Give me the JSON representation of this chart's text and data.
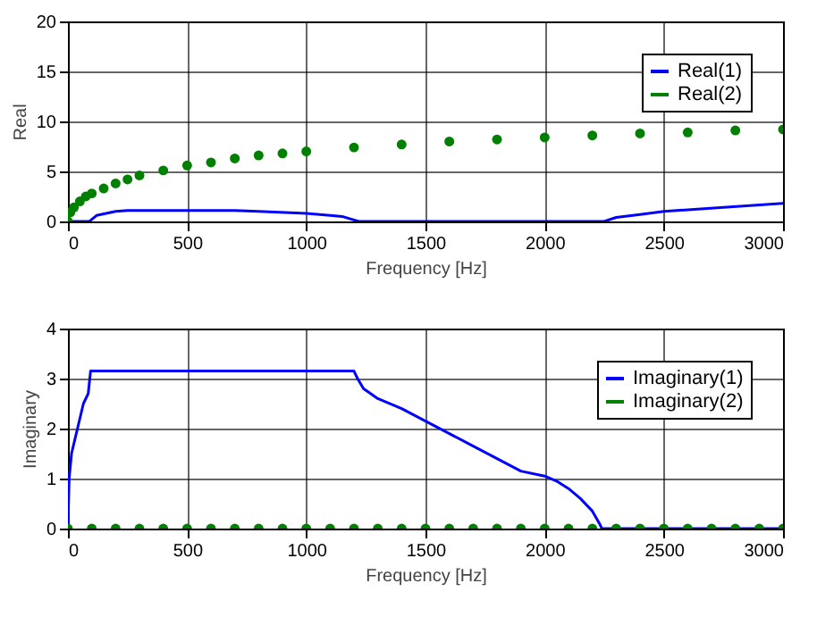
{
  "chart_data": [
    {
      "type": "line",
      "xlabel": "Frequency [Hz]",
      "ylabel": "Real",
      "xlim": [
        0,
        3000
      ],
      "xticks": [
        0,
        500,
        1000,
        1500,
        2000,
        2500,
        3000
      ],
      "ylim": [
        0,
        20
      ],
      "yticks": [
        0,
        5,
        10,
        15,
        20
      ],
      "grid": true,
      "legend": "top right",
      "series": [
        {
          "name": "Real(1)",
          "color": "#0000ff",
          "marker": "none",
          "x": [
            0,
            90,
            120,
            200,
            250,
            500,
            700,
            800,
            1000,
            1100,
            1150,
            1220,
            1500,
            2000,
            2250,
            2300,
            2400,
            2500,
            2750,
            3000
          ],
          "values": [
            0,
            0,
            0.6,
            1.0,
            1.1,
            1.1,
            1.1,
            1.0,
            0.8,
            0.6,
            0.5,
            0,
            0,
            0,
            0,
            0.4,
            0.7,
            1.0,
            1.4,
            1.8
          ]
        },
        {
          "name": "Real(2)",
          "type": "scatter",
          "color": "#008000",
          "marker": "circle",
          "x": [
            0,
            10,
            25,
            50,
            75,
            100,
            150,
            200,
            250,
            300,
            400,
            500,
            600,
            700,
            800,
            900,
            1000,
            1200,
            1400,
            1600,
            1800,
            2000,
            2200,
            2400,
            2600,
            2800,
            3000
          ],
          "values": [
            0,
            0.9,
            1.4,
            2.0,
            2.5,
            2.8,
            3.3,
            3.8,
            4.2,
            4.6,
            5.1,
            5.6,
            5.9,
            6.3,
            6.6,
            6.8,
            7.0,
            7.4,
            7.7,
            8.0,
            8.2,
            8.4,
            8.6,
            8.8,
            8.9,
            9.1,
            9.2
          ]
        }
      ]
    },
    {
      "type": "line",
      "xlabel": "Frequency [Hz]",
      "ylabel": "Imaginary",
      "xlim": [
        0,
        3000
      ],
      "xticks": [
        0,
        500,
        1000,
        1500,
        2000,
        2500,
        3000
      ],
      "ylim": [
        0,
        4
      ],
      "yticks": [
        0,
        1,
        2,
        3,
        4
      ],
      "grid": true,
      "legend": "top right",
      "series": [
        {
          "name": "Imaginary(1)",
          "color": "#0000ff",
          "marker": "none",
          "x": [
            0,
            5,
            15,
            40,
            65,
            85,
            95,
            1200,
            1215,
            1240,
            1300,
            1400,
            1500,
            1600,
            1700,
            1800,
            1900,
            2000,
            2050,
            2100,
            2150,
            2200,
            2230,
            2240,
            3000
          ],
          "values": [
            0,
            1.0,
            1.5,
            2.0,
            2.5,
            2.7,
            3.15,
            3.15,
            3.0,
            2.8,
            2.6,
            2.4,
            2.15,
            1.9,
            1.65,
            1.4,
            1.15,
            1.05,
            0.95,
            0.8,
            0.6,
            0.35,
            0.1,
            0,
            0
          ]
        },
        {
          "name": "Imaginary(2)",
          "type": "scatter",
          "color": "#008000",
          "marker": "circle",
          "x": [
            0,
            100,
            200,
            300,
            400,
            500,
            600,
            700,
            800,
            900,
            1000,
            1100,
            1200,
            1300,
            1400,
            1500,
            1600,
            1700,
            1800,
            1900,
            2000,
            2100,
            2200,
            2300,
            2400,
            2500,
            2600,
            2700,
            2800,
            2900,
            3000
          ],
          "values": [
            0,
            0,
            0,
            0,
            0,
            0,
            0,
            0,
            0,
            0,
            0,
            0,
            0,
            0,
            0,
            0,
            0,
            0,
            0,
            0,
            0,
            0,
            0,
            0,
            0,
            0,
            0,
            0,
            0,
            0,
            0
          ]
        }
      ]
    }
  ]
}
